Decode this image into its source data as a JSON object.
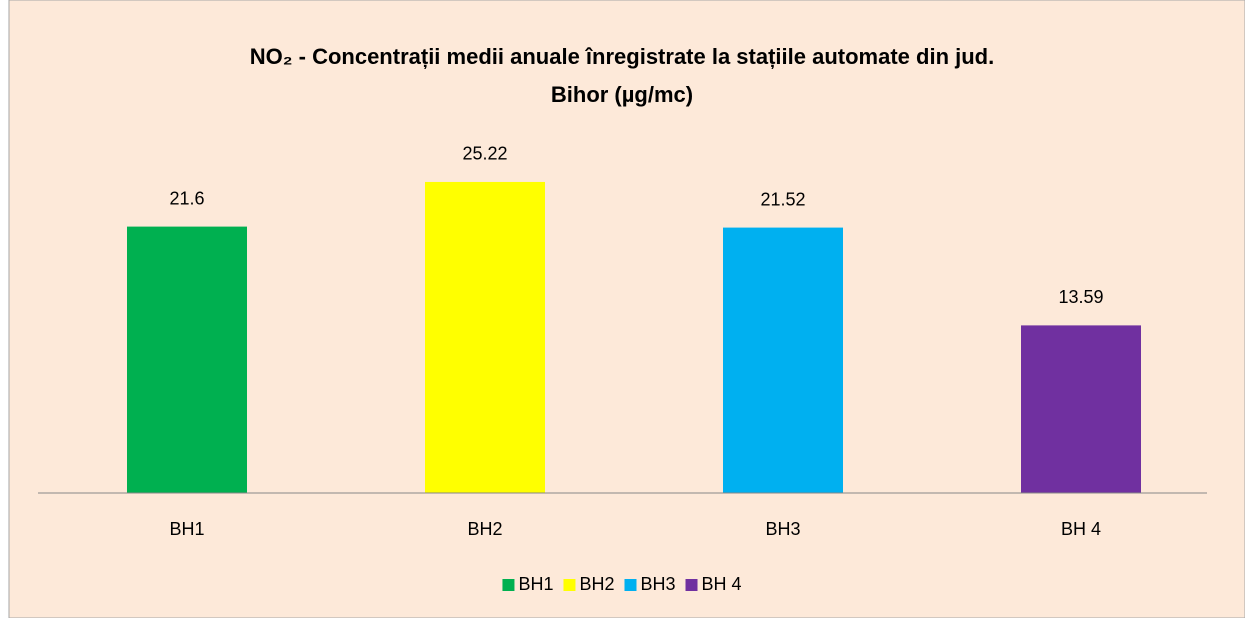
{
  "chart_data": {
    "type": "bar",
    "title": [
      "NO₂ -  Concentrații medii anuale înregistrate la stațiile automate din jud.",
      "Bihor (µg/mc)"
    ],
    "categories": [
      "BH1",
      "BH2",
      "BH3",
      "BH 4"
    ],
    "values": [
      21.6,
      25.22,
      21.52,
      13.59
    ],
    "colors": [
      "#00b050",
      "#ffff00",
      "#00b0f0",
      "#7030a0"
    ],
    "ylim": [
      0,
      30
    ],
    "legend": "bottom"
  }
}
